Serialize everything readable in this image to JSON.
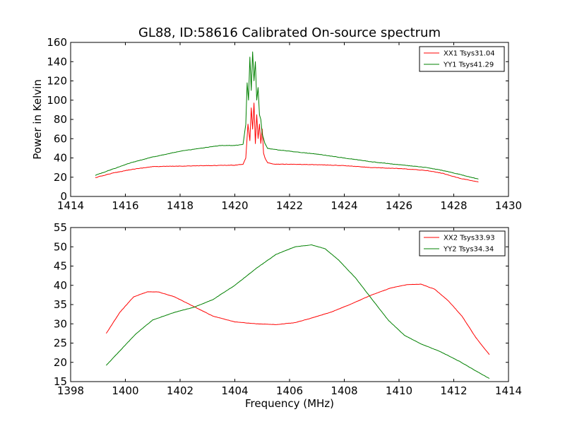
{
  "chart_data": [
    {
      "type": "line",
      "title": "GL88, ID:58616 Calibrated On-source spectrum",
      "xlabel": "",
      "ylabel": "Power in Kelvin",
      "xlim": [
        1414,
        1430
      ],
      "ylim": [
        0,
        160
      ],
      "xticks": [
        1414,
        1416,
        1418,
        1420,
        1422,
        1424,
        1426,
        1428,
        1430
      ],
      "yticks": [
        0,
        20,
        40,
        60,
        80,
        100,
        120,
        140,
        160
      ],
      "legend_position": "top-right",
      "series": [
        {
          "name": "XX1 Tsys31.04",
          "color": "#ff0000",
          "x": [
            1414.9,
            1415.5,
            1416.2,
            1417.0,
            1418.0,
            1419.0,
            1420.0,
            1420.3,
            1420.4,
            1420.48,
            1420.55,
            1420.6,
            1420.65,
            1420.7,
            1420.75,
            1420.8,
            1420.85,
            1420.9,
            1420.95,
            1421.0,
            1421.05,
            1421.1,
            1421.2,
            1421.4,
            1422.0,
            1423.0,
            1424.0,
            1425.0,
            1426.0,
            1427.0,
            1427.6,
            1428.2,
            1428.9
          ],
          "y": [
            19.5,
            24,
            28,
            31,
            31.5,
            32,
            32.5,
            33.5,
            40,
            75,
            58,
            92,
            70,
            97,
            55,
            85,
            60,
            75,
            55,
            70,
            45,
            40,
            35,
            33.5,
            33.5,
            33,
            32,
            30,
            29,
            27,
            24,
            19,
            15
          ]
        },
        {
          "name": "YY1 Tsys41.29",
          "color": "#008000",
          "x": [
            1414.9,
            1415.5,
            1416.2,
            1417.0,
            1418.0,
            1419.0,
            1419.5,
            1420.0,
            1420.3,
            1420.4,
            1420.45,
            1420.5,
            1420.55,
            1420.6,
            1420.65,
            1420.7,
            1420.75,
            1420.8,
            1420.85,
            1420.9,
            1420.95,
            1421.0,
            1421.05,
            1421.1,
            1421.2,
            1421.4,
            1422.0,
            1423.0,
            1424.0,
            1425.0,
            1426.0,
            1427.0,
            1427.6,
            1428.2,
            1428.9
          ],
          "y": [
            22,
            28,
            35,
            41,
            47,
            51,
            53,
            53,
            54,
            75,
            118,
            100,
            145,
            110,
            150,
            120,
            140,
            100,
            113,
            85,
            80,
            65,
            60,
            55,
            50,
            49,
            47,
            44,
            40,
            36,
            33,
            30,
            27,
            23,
            18
          ]
        }
      ]
    },
    {
      "type": "line",
      "title": "",
      "xlabel": "Frequency (MHz)",
      "ylabel": "",
      "xlim": [
        1398,
        1414
      ],
      "ylim": [
        15,
        55
      ],
      "xticks": [
        1398,
        1400,
        1402,
        1404,
        1406,
        1408,
        1410,
        1412,
        1414
      ],
      "yticks": [
        15,
        20,
        25,
        30,
        35,
        40,
        45,
        50,
        55
      ],
      "legend_position": "top-right",
      "series": [
        {
          "name": "XX2 Tsys33.93",
          "color": "#ff0000",
          "x": [
            1399.3,
            1399.8,
            1400.3,
            1400.8,
            1401.2,
            1401.8,
            1402.5,
            1403.2,
            1404.0,
            1404.8,
            1405.5,
            1406.2,
            1406.8,
            1407.5,
            1408.2,
            1409.0,
            1409.7,
            1410.3,
            1410.8,
            1411.3,
            1411.8,
            1412.3,
            1412.8,
            1413.3
          ],
          "y": [
            27.5,
            33,
            37,
            38.3,
            38.3,
            37,
            34.5,
            32,
            30.5,
            30,
            29.8,
            30.3,
            31.5,
            33,
            35,
            37.5,
            39.3,
            40.2,
            40.3,
            39,
            36,
            32,
            26.5,
            22
          ]
        },
        {
          "name": "YY2 Tsys34.34",
          "color": "#008000",
          "x": [
            1399.3,
            1399.8,
            1400.4,
            1401.0,
            1401.8,
            1402.5,
            1403.2,
            1404.0,
            1404.8,
            1405.5,
            1406.2,
            1406.8,
            1407.3,
            1407.8,
            1408.4,
            1409.0,
            1409.6,
            1410.2,
            1410.8,
            1411.5,
            1412.2,
            1412.8,
            1413.3
          ],
          "y": [
            19.2,
            23,
            27.5,
            31,
            33,
            34.3,
            36.3,
            40,
            44.5,
            48,
            50,
            50.5,
            49.5,
            46.5,
            42,
            36.5,
            31,
            27,
            24.8,
            22.8,
            20.3,
            17.8,
            15.8
          ]
        }
      ]
    }
  ]
}
